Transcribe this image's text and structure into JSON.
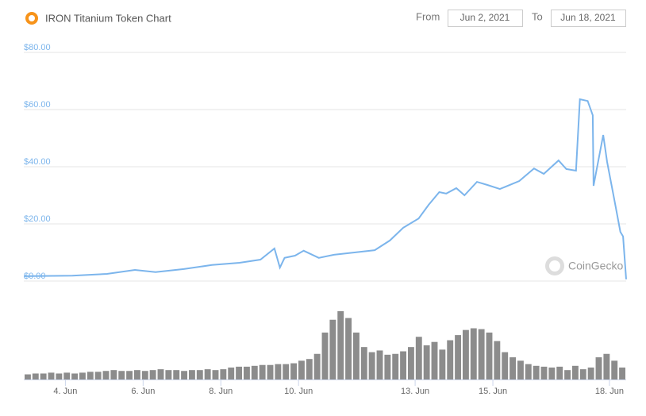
{
  "range": {
    "from_label": "From",
    "from": "Jun 2, 2021",
    "to_label": "To",
    "to": "Jun 18, 2021"
  },
  "watermark": "CoinGecko",
  "chart_data": [
    {
      "type": "line",
      "title": "IRON Titanium Token Chart",
      "x": [
        2.93,
        4.18,
        5.07,
        5.79,
        6.32,
        7.05,
        7.77,
        8.48,
        9.02,
        9.38,
        9.52,
        9.64,
        9.91,
        10.13,
        10.52,
        10.91,
        11.44,
        11.96,
        12.35,
        12.69,
        13.09,
        13.35,
        13.62,
        13.8,
        14.06,
        14.27,
        14.59,
        14.86,
        15.18,
        15.68,
        16.06,
        16.31,
        16.69,
        16.89,
        17.14,
        17.24,
        17.44,
        17.57,
        17.59,
        17.84,
        17.94,
        18.15,
        18.28,
        18.35,
        18.43
      ],
      "series": [
        {
          "color": "#7cb5ec",
          "values": [
            1.7,
            1.9,
            2.5,
            3.9,
            3.1,
            4.2,
            5.6,
            6.4,
            7.5,
            11.4,
            4.7,
            8.1,
            8.9,
            10.6,
            8.1,
            9.2,
            10,
            10.8,
            14.2,
            18.6,
            21.9,
            26.7,
            31.1,
            30.6,
            32.5,
            30,
            34.7,
            33.6,
            32.2,
            35,
            39.4,
            37.5,
            42.2,
            39.2,
            38.6,
            63.6,
            63,
            58,
            33.3,
            51.1,
            41.7,
            26.7,
            17.2,
            15.6,
            0.6
          ]
        }
      ],
      "ylim": [
        0,
        80
      ],
      "yticks": [
        {
          "value": 0,
          "label": "$0.00"
        },
        {
          "value": 20,
          "label": "$20.00"
        },
        {
          "value": 40,
          "label": "$40.00"
        },
        {
          "value": 60,
          "label": "$60.00"
        },
        {
          "value": 80,
          "label": "$80.00"
        }
      ],
      "xlim": [
        2.93,
        18.43
      ],
      "xticks": [
        {
          "value": 4,
          "label": "4. Jun"
        },
        {
          "value": 6,
          "label": "6. Jun"
        },
        {
          "value": 8,
          "label": "8. Jun"
        },
        {
          "value": 10,
          "label": "10. Jun"
        },
        {
          "value": 13,
          "label": "13. Jun"
        },
        {
          "value": 15,
          "label": "15. Jun"
        },
        {
          "value": 18,
          "label": "18. Jun"
        }
      ],
      "grid": true
    },
    {
      "type": "bar",
      "color": "#8c8c8c",
      "values": [
        6,
        7,
        7,
        8,
        7,
        8,
        7,
        8,
        9,
        9,
        10,
        11,
        10,
        10,
        11,
        10,
        11,
        12,
        11,
        11,
        10,
        11,
        11,
        12,
        11,
        12,
        14,
        15,
        15,
        16,
        17,
        17,
        18,
        18,
        19,
        22,
        24,
        30,
        55,
        70,
        80,
        72,
        55,
        38,
        32,
        34,
        29,
        30,
        33,
        38,
        50,
        40,
        44,
        35,
        46,
        52,
        58,
        60,
        59,
        55,
        45,
        32,
        26,
        22,
        18,
        16,
        15,
        14,
        15,
        11,
        16,
        12,
        14,
        26,
        30,
        22,
        14
      ]
    }
  ]
}
